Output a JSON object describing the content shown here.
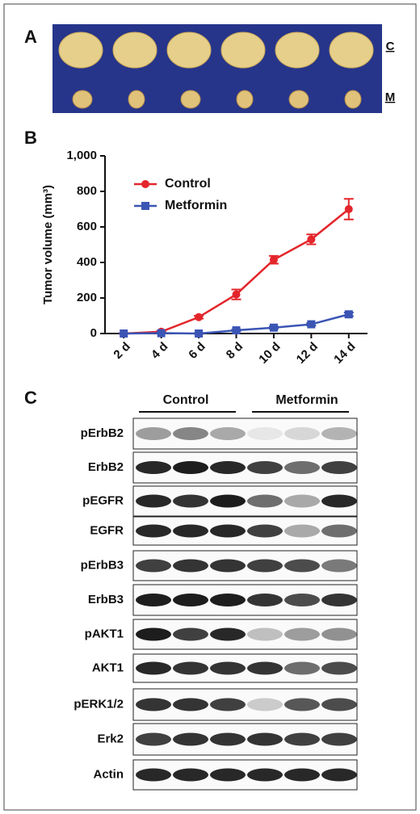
{
  "panel_labels": [
    "A",
    "B",
    "C"
  ],
  "panel_a": {
    "row_labels": [
      "C",
      "M"
    ]
  },
  "chart_data": {
    "type": "line",
    "y_label": "Tumor volume (mm³)",
    "categories": [
      "2 d",
      "4 d",
      "6 d",
      "8 d",
      "10 d",
      "12 d",
      "14 d"
    ],
    "series": [
      {
        "name": "Control",
        "color": "#e3262b",
        "marker": "circle",
        "values": [
          0,
          10,
          92,
          220,
          415,
          530,
          700
        ],
        "errors": [
          2,
          4,
          8,
          28,
          22,
          28,
          58
        ]
      },
      {
        "name": "Metformin",
        "color": "#3b55b4",
        "marker": "square",
        "values": [
          0,
          2,
          0,
          18,
          33,
          52,
          108
        ],
        "errors": [
          1,
          2,
          2,
          5,
          6,
          7,
          10
        ]
      }
    ],
    "ylim": [
      0,
      1000
    ],
    "yticks": [
      0,
      200,
      400,
      600,
      800,
      {
        "value": 1000,
        "label": "1,000"
      }
    ],
    "legend": "upper left"
  },
  "panel_c": {
    "groups": [
      "Control",
      "Metformin"
    ],
    "rows": [
      "pErbB2",
      "ErbB2",
      "pEGFR",
      "EGFR",
      "pErbB3",
      "ErbB3",
      "pAKT1",
      "AKT1",
      "pERK1/2",
      "Erk2",
      "Actin"
    ]
  }
}
